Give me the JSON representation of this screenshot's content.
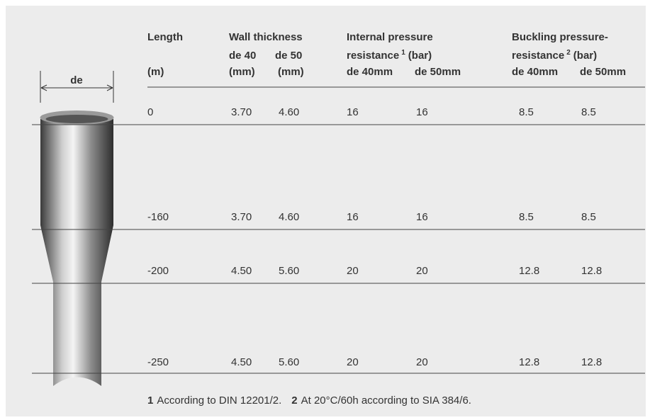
{
  "diameter_label": "de",
  "table": {
    "header": {
      "length": {
        "title": "Length",
        "unit": "(m)"
      },
      "wall_thickness": {
        "title": "Wall thickness",
        "columns": [
          "de 40",
          "de 50"
        ],
        "units": [
          "(mm)",
          "(mm)"
        ]
      },
      "internal_pressure": {
        "title": "Internal pressure",
        "title2": "resistance",
        "note": "1",
        "unit": "(bar)",
        "columns": [
          "de 40mm",
          "de 50mm"
        ]
      },
      "buckling_pressure": {
        "title": "Buckling pressure-",
        "title2": "resistance",
        "note": "2",
        "unit": "(bar)",
        "columns": [
          "de 40mm",
          "de 50mm"
        ]
      }
    },
    "rows": [
      [
        "0",
        "3.70",
        "4.60",
        "16",
        "16",
        "8.5",
        "8.5"
      ],
      [
        "-160",
        "3.70",
        "4.60",
        "16",
        "16",
        "8.5",
        "8.5"
      ],
      [
        "-200",
        "4.50",
        "5.60",
        "20",
        "20",
        "12.8",
        "12.8"
      ],
      [
        "-250",
        "4.50",
        "5.60",
        "20",
        "20",
        "12.8",
        "12.8"
      ]
    ]
  },
  "footnotes": [
    {
      "mark": "1",
      "text": "According to DIN 12201/2."
    },
    {
      "mark": "2",
      "text": "At 20°C/60h according to SIA 384/6."
    }
  ]
}
